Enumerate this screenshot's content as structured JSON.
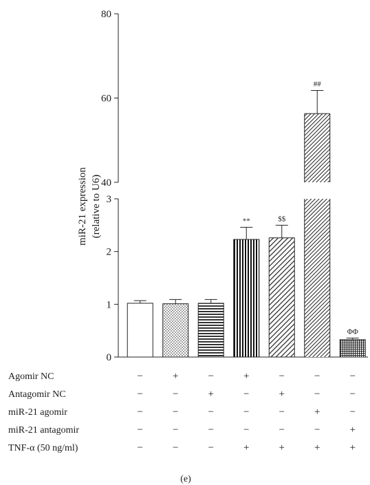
{
  "chart_data": {
    "type": "bar",
    "ylabel_line1": "miR-21 expression",
    "ylabel_line2": "(relative to U6)",
    "y_axis_break": true,
    "lower_ylim": [
      0,
      3
    ],
    "lower_yticks": [
      "0",
      "1",
      "2",
      "3"
    ],
    "upper_ylim": [
      40,
      80
    ],
    "upper_yticks": [
      "40",
      "60",
      "80"
    ],
    "values": [
      1.02,
      1.01,
      1.02,
      2.23,
      2.26,
      56.3,
      0.33
    ],
    "errors": [
      0.05,
      0.08,
      0.07,
      0.23,
      0.24,
      5.5,
      0.03
    ],
    "patterns": [
      "blank",
      "dots",
      "horizontal",
      "vertical",
      "diagonal-right",
      "diagonal-dense",
      "grid"
    ],
    "annotations": [
      "",
      "",
      "",
      "**",
      "$$",
      "##",
      "ΦΦ"
    ],
    "conditions": [
      {
        "label": "Agomir NC",
        "signs": [
          "−",
          "+",
          "−",
          "+",
          "−",
          "−",
          "−"
        ]
      },
      {
        "label": "Antagomir NC",
        "signs": [
          "−",
          "−",
          "+",
          "−",
          "+",
          "−",
          "−"
        ]
      },
      {
        "label": "miR-21 agomir",
        "signs": [
          "−",
          "−",
          "−",
          "−",
          "−",
          "+",
          "−"
        ]
      },
      {
        "label": "miR-21 antagomir",
        "signs": [
          "−",
          "−",
          "−",
          "−",
          "−",
          "−",
          "+"
        ]
      },
      {
        "label": "TNF-α (50 ng/ml)",
        "signs": [
          "−",
          "−",
          "−",
          "+",
          "+",
          "+",
          "+"
        ]
      }
    ],
    "panel_label": "(e)"
  }
}
